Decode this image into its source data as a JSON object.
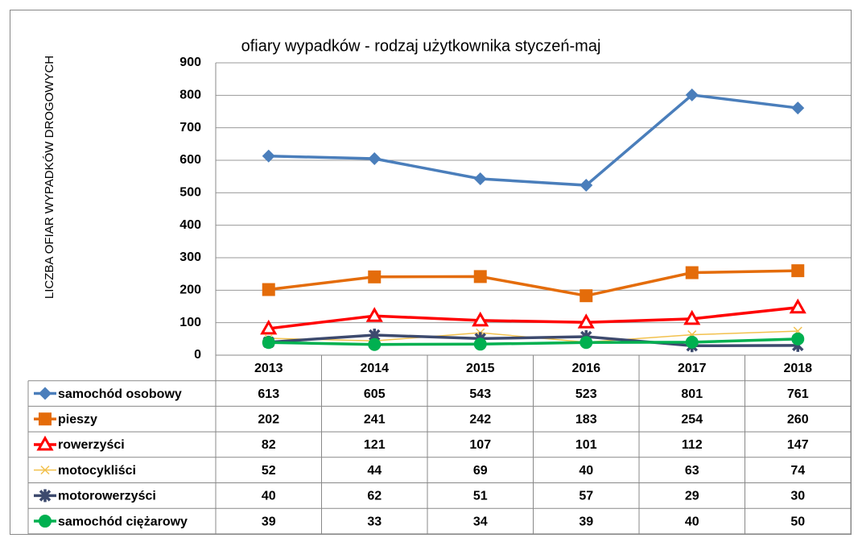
{
  "chart_data": {
    "type": "line",
    "title": "ofiary wypadków  - rodzaj użytkownika styczeń-maj",
    "y_label": "LICZBA OFIAR WYPADKÓW DROGOWYCH",
    "categories": [
      "2013",
      "2014",
      "2015",
      "2016",
      "2017",
      "2018"
    ],
    "series": [
      {
        "name": "samochód osobowy",
        "color": "#4a7ebb",
        "marker": "diamond",
        "values": [
          613,
          605,
          543,
          523,
          801,
          761
        ]
      },
      {
        "name": "pieszy",
        "color": "#e46c0a",
        "marker": "square",
        "values": [
          202,
          241,
          242,
          183,
          254,
          260
        ]
      },
      {
        "name": "rowerzyści",
        "color": "#ff0000",
        "marker": "triangle",
        "values": [
          82,
          121,
          107,
          101,
          112,
          147
        ]
      },
      {
        "name": "motocykliści",
        "color": "#f2c14e",
        "marker": "x",
        "values": [
          52,
          44,
          69,
          40,
          63,
          74
        ]
      },
      {
        "name": "motorowerzyści",
        "color": "#3d4a6e",
        "marker": "star",
        "values": [
          40,
          62,
          51,
          57,
          29,
          30
        ]
      },
      {
        "name": "samochód ciężarowy",
        "color": "#00b050",
        "marker": "circle",
        "values": [
          39,
          33,
          34,
          39,
          40,
          50
        ]
      }
    ],
    "ylim": [
      0,
      900
    ],
    "yticks": [
      0,
      100,
      200,
      300,
      400,
      500,
      600,
      700,
      800,
      900
    ],
    "grid": true
  }
}
